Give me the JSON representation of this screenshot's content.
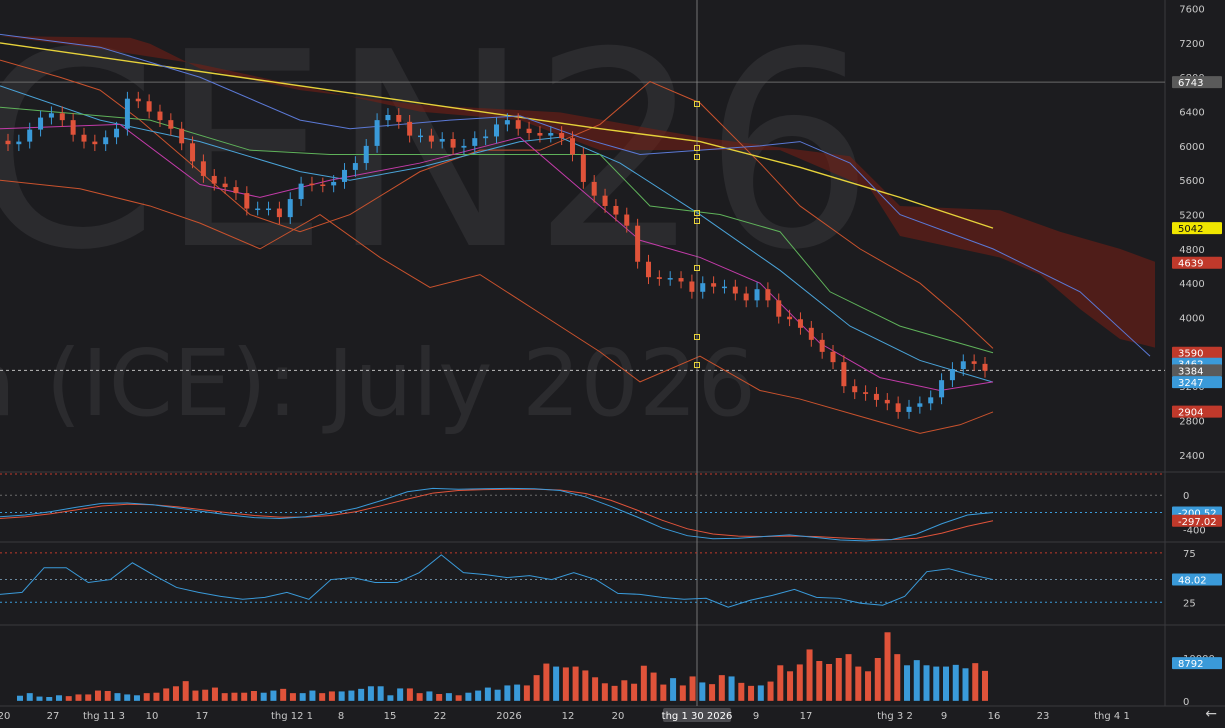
{
  "watermark": {
    "symbol": "CEN26",
    "subtitle": "a (ICE): July 2026"
  },
  "colors": {
    "background": "#1c1c1f",
    "up": "#3a9ad9",
    "down": "#e0533a",
    "ma_slow": "#e6d23a",
    "bb_band": "#c9522d",
    "ma_fast_blue": "#5b79d6",
    "ma_fast_cyan": "#4aa3d8",
    "ma_green": "#5fb25a",
    "ma_magenta": "#c23ba8",
    "crosshair": "#8a8a8a"
  },
  "crosshair_label": "thg 1 30 2026",
  "icons": {
    "nav_back": "arrow-left-icon"
  },
  "nav_back_glyph": "←",
  "chart_data": [
    {
      "type": "candlestick",
      "panel": "price",
      "ylim": [
        2200,
        7700
      ],
      "y_ticks": [
        "2400",
        "2800",
        "3200",
        "3600",
        "4000",
        "4400",
        "4800",
        "5200",
        "5600",
        "6000",
        "6400",
        "6800",
        "7200",
        "7600"
      ],
      "x_ticks": [
        "20",
        "27",
        "thg 11 3",
        "10",
        "17",
        "thg 12 1",
        "8",
        "15",
        "22",
        "2026",
        "12",
        "20",
        "thg 1 30 2026",
        "9",
        "17",
        "thg 3 2",
        "9",
        "16",
        "23",
        "thg 4 1"
      ],
      "closes": [
        6020,
        6050,
        6190,
        6330,
        6380,
        6300,
        6130,
        6050,
        6020,
        6100,
        6200,
        6550,
        6520,
        6400,
        6300,
        6200,
        6030,
        5820,
        5650,
        5560,
        5520,
        5450,
        5270,
        5270,
        5270,
        5170,
        5380,
        5560,
        5550,
        5540,
        5580,
        5720,
        5800,
        6000,
        6300,
        6360,
        6280,
        6120,
        6120,
        6050,
        6080,
        5980,
        6000,
        6090,
        6110,
        6250,
        6300,
        6200,
        6150,
        6120,
        6150,
        6090,
        5900,
        5580,
        5420,
        5300,
        5200,
        5070,
        4650,
        4470,
        4450,
        4460,
        4420,
        4300,
        4400,
        4360,
        4360,
        4280,
        4200,
        4330,
        4200,
        4010,
        3980,
        3880,
        3740,
        3600,
        3480,
        3200,
        3130,
        3110,
        3040,
        3000,
        2900,
        2960,
        3000,
        3070,
        3270,
        3400,
        3490,
        3460,
        3380
      ],
      "badges": [
        {
          "value": "6743",
          "color": "#5a5a5a"
        },
        {
          "value": "5042",
          "color": "#f0e600"
        },
        {
          "value": "4639",
          "color": "#c0392b"
        },
        {
          "value": "3590",
          "color": "#c0392b"
        },
        {
          "value": "3462",
          "color": "#3a9ad9"
        },
        {
          "value": "3384",
          "color": "#5a5a5a"
        },
        {
          "value": "3247",
          "color": "#3a9ad9"
        },
        {
          "value": "2904",
          "color": "#c0392b"
        }
      ]
    },
    {
      "type": "line",
      "panel": "macd",
      "ylim": [
        -520,
        200
      ],
      "y_ticks": [
        "0",
        "-400"
      ],
      "series_a": [
        -250,
        -230,
        -190,
        -140,
        -95,
        -90,
        -110,
        -150,
        -190,
        -230,
        -260,
        -270,
        -250,
        -210,
        -150,
        -60,
        40,
        80,
        70,
        75,
        80,
        75,
        55,
        -20,
        -130,
        -250,
        -380,
        -470,
        -505,
        -500,
        -480,
        -460,
        -490,
        -520,
        -530,
        -515,
        -450,
        -330,
        -230,
        -200
      ],
      "series_b": [
        -270,
        -250,
        -215,
        -170,
        -125,
        -105,
        -110,
        -135,
        -170,
        -205,
        -235,
        -255,
        -255,
        -235,
        -190,
        -120,
        -45,
        25,
        55,
        65,
        70,
        70,
        60,
        20,
        -60,
        -170,
        -290,
        -390,
        -450,
        -475,
        -480,
        -475,
        -480,
        -495,
        -510,
        -515,
        -500,
        -440,
        -360,
        -297
      ],
      "badges": [
        {
          "value": "-200.52",
          "color": "#3a9ad9"
        },
        {
          "value": "-297.02",
          "color": "#c0392b"
        }
      ]
    },
    {
      "type": "line",
      "panel": "rsi",
      "ylim": [
        5,
        82
      ],
      "y_ticks": [
        "75",
        "25"
      ],
      "values": [
        33,
        35,
        60,
        60,
        45,
        48,
        65,
        52,
        40,
        35,
        31,
        28,
        30,
        35,
        28,
        48,
        50,
        45,
        45,
        55,
        73,
        55,
        53,
        50,
        52,
        48,
        55,
        48,
        34,
        33,
        30,
        28,
        29,
        20,
        27,
        32,
        38,
        30,
        29,
        24,
        22,
        31,
        56,
        59,
        53,
        48
      ],
      "badges": [
        {
          "value": "48.02",
          "color": "#3a9ad9"
        }
      ]
    },
    {
      "type": "bar",
      "panel": "volume",
      "ylim": [
        -500,
        17000
      ],
      "y_ticks": [
        "10000",
        "0"
      ],
      "values": [
        1200,
        1800,
        1000,
        900,
        1300,
        1100,
        1500,
        1500,
        2400,
        2300,
        1800,
        1500,
        1300,
        1800,
        1900,
        2900,
        3400,
        4600,
        2400,
        2600,
        3100,
        1800,
        1900,
        1900,
        2300,
        1900,
        2400,
        2800,
        1800,
        1800,
        2400,
        1800,
        2200,
        2200,
        2400,
        2800,
        3400,
        3400,
        1300,
        2900,
        2900,
        1800,
        2200,
        1600,
        1800,
        1300,
        1900,
        2400,
        3100,
        2600,
        3600,
        3800,
        3600,
        6000,
        8700,
        8000,
        7800,
        8000,
        7100,
        5500,
        4100,
        3500,
        4800,
        4000,
        8200,
        6600,
        3800,
        5300,
        3600,
        5700,
        4300,
        3900,
        6000,
        5700,
        4200,
        3500,
        3600,
        4500,
        8300,
        6900,
        8500,
        12000,
        9300,
        8600,
        10000,
        10900,
        8000,
        6900,
        10000,
        16000,
        10900,
        8300,
        9500,
        8300,
        8000,
        8000,
        8400,
        7600,
        8800,
        7000
      ],
      "badges": [
        {
          "value": "8792",
          "color": "#3a9ad9"
        }
      ]
    }
  ]
}
